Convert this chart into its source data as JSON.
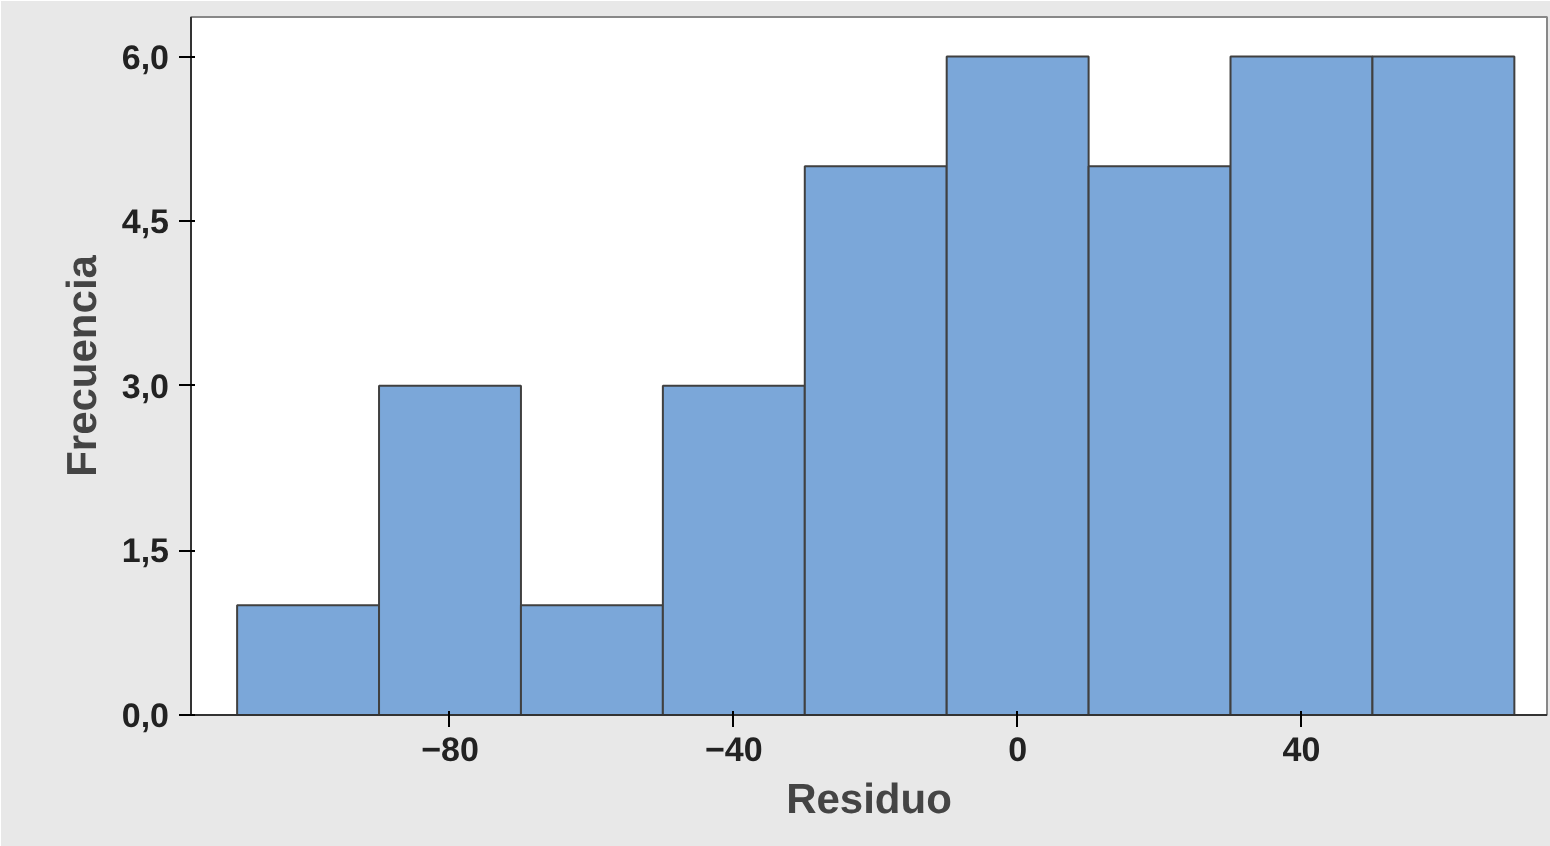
{
  "chart_data": {
    "type": "histogram",
    "xlabel": "Residuo",
    "ylabel": "Frecuencia",
    "bins": [
      -110,
      -90,
      -70,
      -50,
      -30,
      -10,
      10,
      30,
      50,
      70
    ],
    "values": [
      1,
      3,
      1,
      3,
      5,
      6,
      5,
      6,
      6
    ],
    "color": "#7ba7d9",
    "xlim": [
      -116.5,
      74.6
    ],
    "ylim": [
      0,
      6.36
    ],
    "xticks": [
      -80,
      -40,
      0,
      40
    ],
    "yticks": [
      {
        "value": 0,
        "label": "0,0"
      },
      {
        "value": 1.5,
        "label": "1,5"
      },
      {
        "value": 3,
        "label": "3,0"
      },
      {
        "value": 4.5,
        "label": "4,5"
      },
      {
        "value": 6,
        "label": "6,0"
      }
    ],
    "grid": false
  }
}
